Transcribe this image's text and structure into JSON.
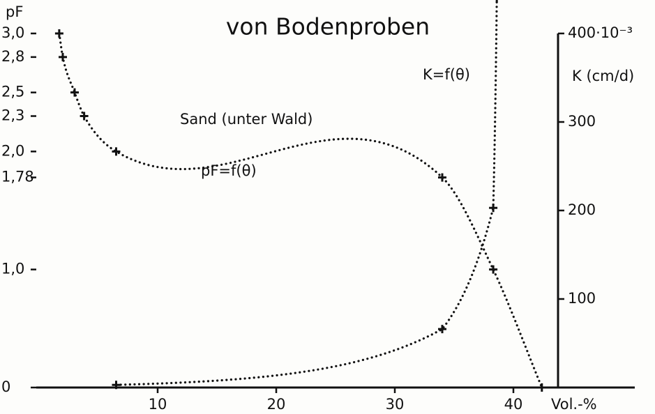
{
  "chart_data": {
    "type": "line",
    "title": "von Bodenproben",
    "y_label": "pF",
    "y2_label": "K (cm/d)",
    "x_label": "Vol.-%",
    "annotations": [
      "Sand (unter Wald)",
      "pF=f(θ)",
      "K=f(θ)"
    ],
    "xlim": [
      0,
      50
    ],
    "xticks": [
      10,
      20,
      30,
      40
    ],
    "ylim": [
      0,
      3.0
    ],
    "yticks": [
      0,
      {
        "value": 1.0,
        "label": "1,0"
      },
      {
        "value": 1.78,
        "label": "1,78"
      },
      {
        "value": 2.0,
        "label": "2,0"
      },
      {
        "value": 2.3,
        "label": "2,3"
      },
      {
        "value": 2.5,
        "label": "2,5"
      },
      {
        "value": 2.8,
        "label": "2,8"
      },
      {
        "value": 3.0,
        "label": "3,0"
      }
    ],
    "y2lim": [
      0,
      400
    ],
    "y2ticks": [
      100,
      200,
      300,
      {
        "value": 400,
        "label": "400·10⁻³"
      }
    ],
    "series": [
      {
        "name": "pF=f(θ)",
        "color": "#111111",
        "x": [
          1.7,
          2.0,
          3.0,
          3.8,
          6.5,
          34.0,
          38.3,
          42.4
        ],
        "values": [
          3.0,
          2.8,
          2.5,
          2.3,
          2.0,
          1.78,
          1.0,
          0
        ]
      },
      {
        "name": "K=f(θ)",
        "color": "#111111",
        "axis": "y2",
        "x": [
          6.5,
          34.0,
          38.3,
          38.6
        ],
        "values": [
          3,
          66,
          203,
          440
        ]
      }
    ]
  }
}
